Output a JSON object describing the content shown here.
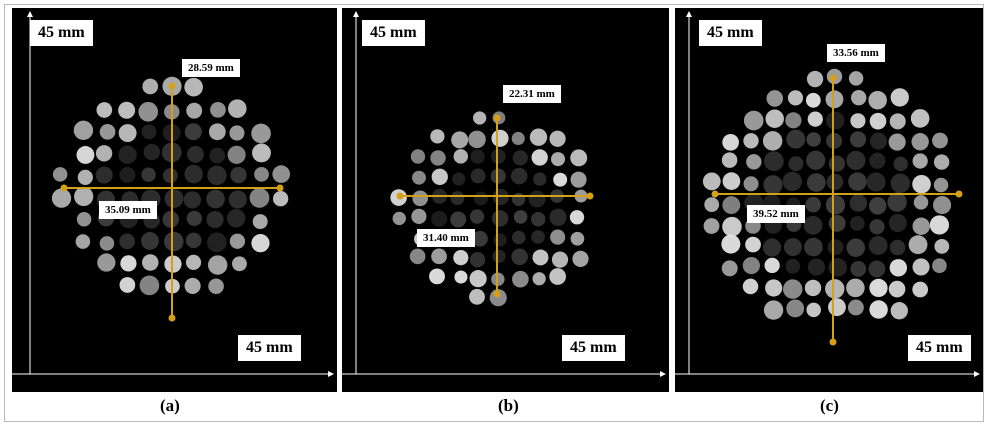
{
  "panels": [
    {
      "id": "a",
      "caption": "(a)",
      "scale_top": "45 mm",
      "scale_bottom": "45 mm",
      "vertical_measure": "28.59 mm",
      "horizontal_measure": "35.09 mm"
    },
    {
      "id": "b",
      "caption": "(b)",
      "scale_top": "45 mm",
      "scale_bottom": "45 mm",
      "vertical_measure": "22.31 mm",
      "horizontal_measure": "31.40 mm"
    },
    {
      "id": "c",
      "caption": "(c)",
      "scale_top": "45 mm",
      "scale_bottom": "45 mm",
      "vertical_measure": "33.56 mm",
      "horizontal_measure": "39.52 mm"
    }
  ],
  "colors": {
    "measure_line": "#d4a017",
    "axis_line": "#ffffff",
    "background": "#000000"
  }
}
